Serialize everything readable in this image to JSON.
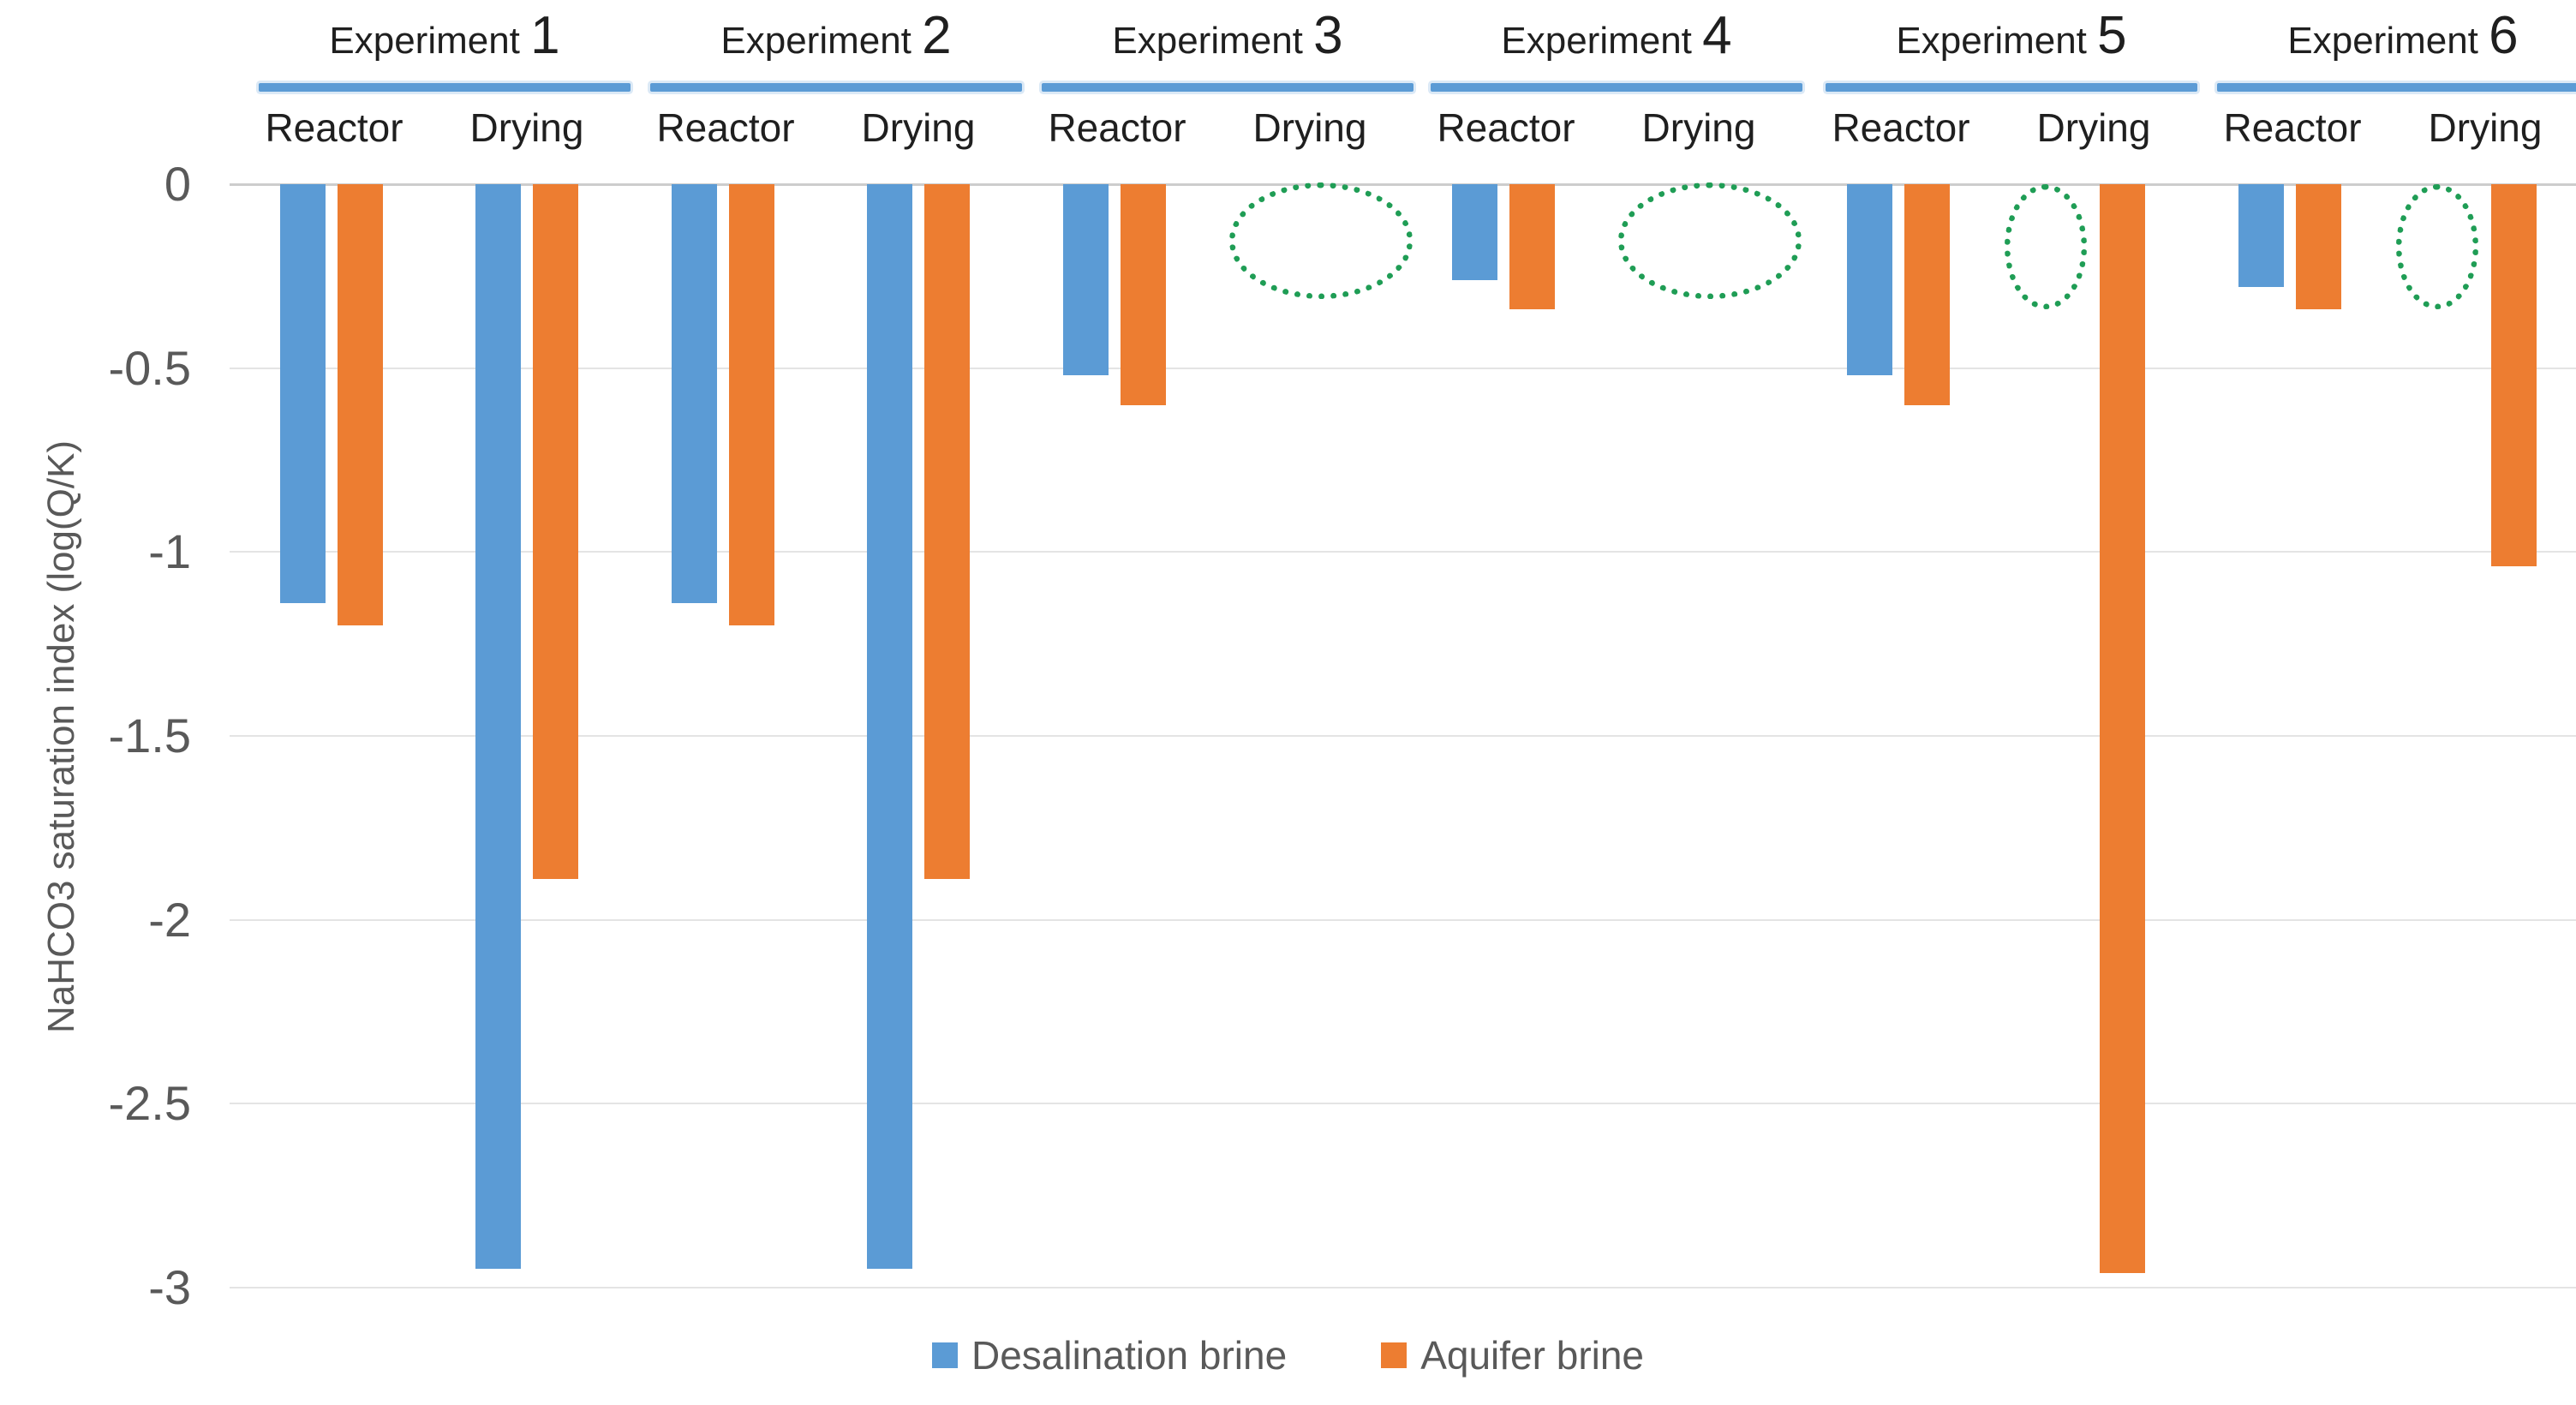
{
  "chart_data": {
    "type": "bar",
    "title": "",
    "ylabel": "NaHCO3 saturation index (log(Q/K)",
    "xlabel": "",
    "ylim": [
      -3,
      0
    ],
    "yticks": [
      0,
      -0.5,
      -1,
      -1.5,
      -2,
      -2.5,
      -3
    ],
    "ytick_labels": [
      "0",
      "-0.5",
      "-1",
      "-1.5",
      "-2",
      "-2.5",
      "-3"
    ],
    "grid": "horizontal",
    "legend_position": "bottom",
    "series": [
      {
        "name": "Desalination brine",
        "color": "#5B9BD5"
      },
      {
        "name": "Aquifer brine",
        "color": "#ED7D31"
      }
    ],
    "annotation_color": "#1F9D55",
    "gridline_color": "#e4e4e4",
    "zero_line_color": "#cdcdcd",
    "groups": [
      {
        "label": "Experiment 1",
        "conditions": [
          {
            "label": "Reactor",
            "values": [
              -1.14,
              -1.2
            ],
            "annotation": null
          },
          {
            "label": "Drying",
            "values": [
              -2.95,
              -1.89
            ],
            "annotation": null
          }
        ]
      },
      {
        "label": "Experiment 2",
        "conditions": [
          {
            "label": "Reactor",
            "values": [
              -1.14,
              -1.2
            ],
            "annotation": null
          },
          {
            "label": "Drying",
            "values": [
              -2.95,
              -1.89
            ],
            "annotation": null
          }
        ]
      },
      {
        "label": "Experiment 3",
        "conditions": [
          {
            "label": "Reactor",
            "values": [
              -0.52,
              -0.6
            ],
            "annotation": null
          },
          {
            "label": "Drying",
            "values": [
              null,
              null
            ],
            "annotation": "dotted-ellipse-wide"
          }
        ]
      },
      {
        "label": "Experiment 4",
        "conditions": [
          {
            "label": "Reactor",
            "values": [
              -0.26,
              -0.34
            ],
            "annotation": null
          },
          {
            "label": "Drying",
            "values": [
              null,
              null
            ],
            "annotation": "dotted-ellipse-wide"
          }
        ]
      },
      {
        "label": "Experiment 5",
        "conditions": [
          {
            "label": "Reactor",
            "values": [
              -0.52,
              -0.6
            ],
            "annotation": null
          },
          {
            "label": "Drying",
            "values": [
              null,
              -2.96
            ],
            "annotation": "dotted-ellipse-narrow"
          }
        ]
      },
      {
        "label": "Experiment 6",
        "conditions": [
          {
            "label": "Reactor",
            "values": [
              -0.28,
              -0.34
            ],
            "annotation": null
          },
          {
            "label": "Drying",
            "values": [
              null,
              -1.04
            ],
            "annotation": "dotted-ellipse-narrow"
          }
        ]
      }
    ]
  }
}
